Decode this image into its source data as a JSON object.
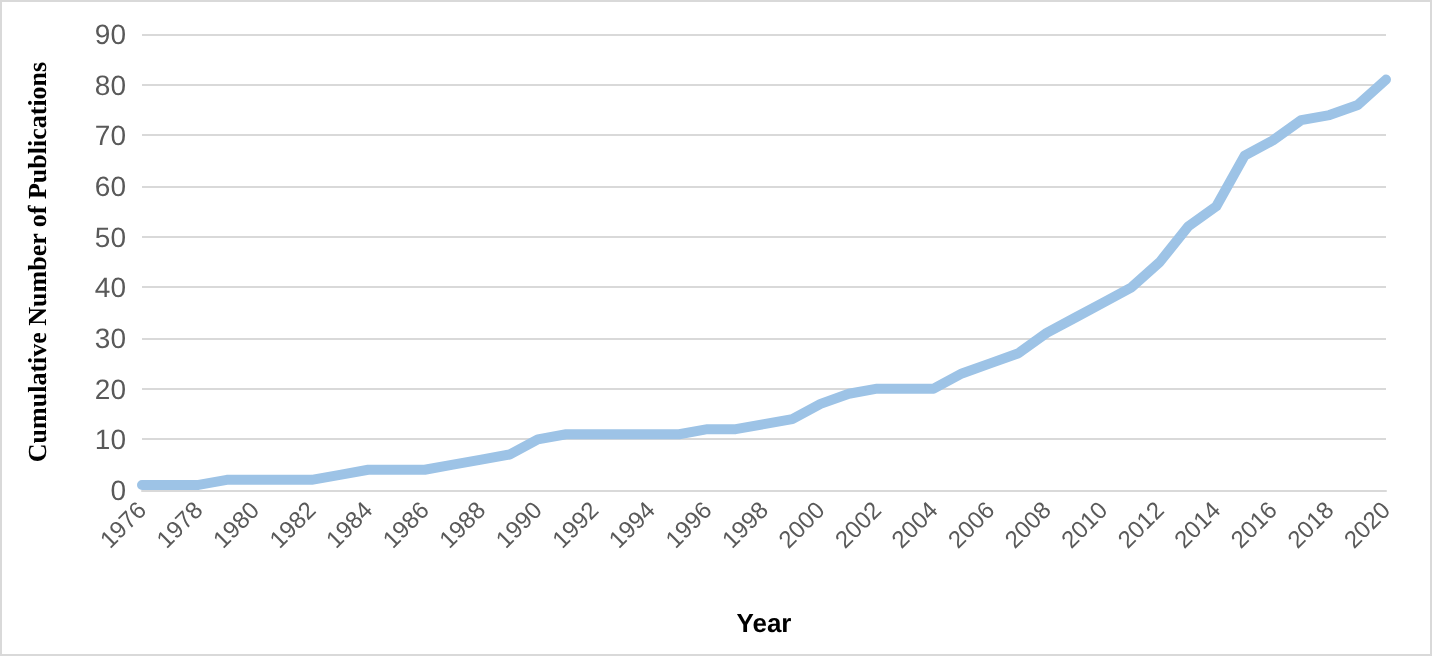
{
  "chart_data": {
    "type": "line",
    "xlabel": "Year",
    "ylabel": "Cumulative Number of Publications",
    "categories": [
      "1976",
      null,
      "1978",
      null,
      "1980",
      null,
      "1982",
      null,
      "1984",
      null,
      "1986",
      null,
      "1988",
      null,
      "1990",
      null,
      "1992",
      null,
      "1994",
      null,
      "1996",
      null,
      "1998",
      null,
      "2000",
      null,
      "2002",
      null,
      "2004",
      null,
      "2006",
      null,
      "2008",
      null,
      "2010",
      null,
      "2012",
      null,
      "2014",
      null,
      "2016",
      null,
      "2018",
      null,
      "2020"
    ],
    "series": [
      {
        "color": "#9dc3e6",
        "values": [
          1,
          1,
          1,
          2,
          2,
          2,
          2,
          3,
          4,
          4,
          4,
          5,
          6,
          7,
          10,
          11,
          11,
          11,
          11,
          11,
          12,
          12,
          13,
          14,
          17,
          19,
          20,
          20,
          20,
          23,
          25,
          27,
          31,
          34,
          37,
          40,
          45,
          52,
          56,
          66,
          69,
          73,
          74,
          76,
          81
        ]
      }
    ],
    "ylim": [
      0,
      90
    ],
    "yticks": [
      0,
      10,
      20,
      30,
      40,
      50,
      60,
      70,
      80,
      90
    ],
    "grid": "y",
    "marker": "none",
    "line_style": "solid"
  }
}
